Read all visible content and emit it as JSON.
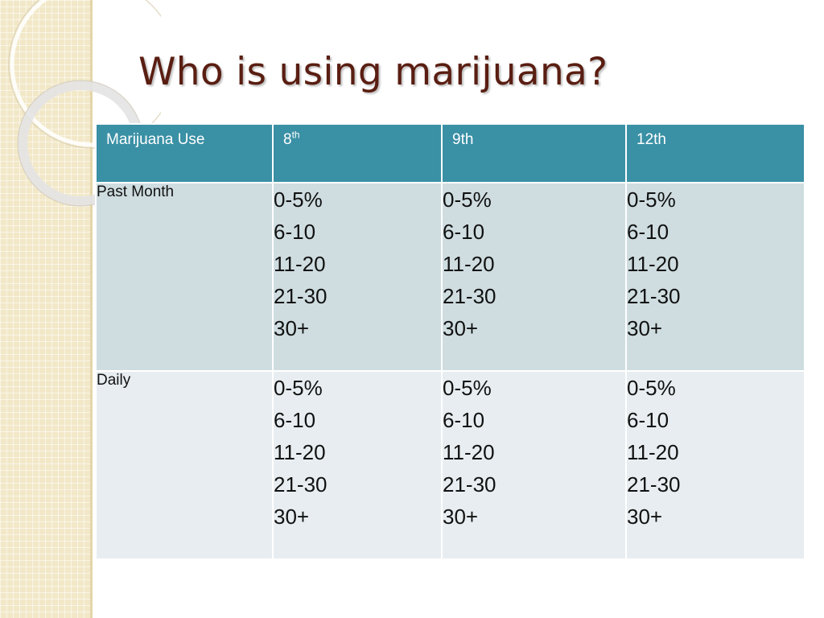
{
  "slide": {
    "title": "Who is using marijuana?"
  },
  "table": {
    "headers": [
      {
        "label": "Marijuana Use",
        "sup": ""
      },
      {
        "label": "8",
        "sup": "th"
      },
      {
        "label": "9th",
        "sup": ""
      },
      {
        "label": "12th",
        "sup": ""
      }
    ],
    "rows": [
      {
        "label": "Past Month",
        "cells": [
          [
            "0-5%",
            "6-10",
            "11-20",
            "21-30",
            "30+"
          ],
          [
            "0-5%",
            "6-10",
            "11-20",
            "21-30",
            "30+"
          ],
          [
            "0-5%",
            "6-10",
            "11-20",
            "21-30",
            "30+"
          ]
        ]
      },
      {
        "label": "Daily",
        "cells": [
          [
            "0-5%",
            "6-10",
            "11-20",
            "21-30",
            "30+"
          ],
          [
            "0-5%",
            "6-10",
            "11-20",
            "21-30",
            "30+"
          ],
          [
            "0-5%",
            "6-10",
            "11-20",
            "21-30",
            "30+"
          ]
        ]
      }
    ]
  },
  "colors": {
    "title": "#5a1e12",
    "header_bg": "#3a90a5",
    "row1_bg": "#cfdde1",
    "row2_bg": "#e7edf0",
    "strip_bg": "#f2e8c8"
  }
}
